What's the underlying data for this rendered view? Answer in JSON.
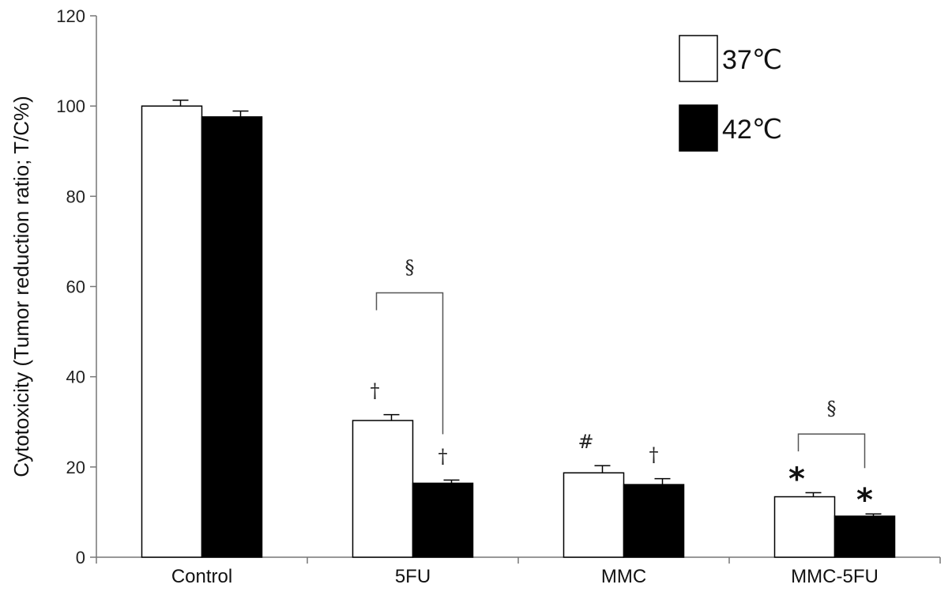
{
  "chart_data": {
    "type": "bar",
    "title": "",
    "xlabel": "",
    "ylabel": "Cytotoxicity (Tumor reduction ratio; T/C%)",
    "ylim": [
      0,
      120
    ],
    "yticks": [
      0,
      20,
      40,
      60,
      80,
      100,
      120
    ],
    "categories": [
      "Control",
      "5FU",
      "MMC",
      "MMC-5FU"
    ],
    "series": [
      {
        "name": "37℃",
        "color": "#ffffff",
        "values": [
          100,
          30.3,
          18.7,
          13.4
        ],
        "errors": [
          1.3,
          1.3,
          1.6,
          0.9
        ]
      },
      {
        "name": "42℃",
        "color": "#000000",
        "values": [
          97.6,
          16.4,
          16.1,
          9.1
        ],
        "errors": [
          1.3,
          0.7,
          1.3,
          0.5
        ]
      }
    ],
    "legend_position": "top-right",
    "grid": false,
    "annotations": [
      {
        "category": 1,
        "series": 0,
        "symbol": "†"
      },
      {
        "category": 1,
        "series": 1,
        "symbol": "†"
      },
      {
        "category": 2,
        "series": 0,
        "symbol": "#"
      },
      {
        "category": 2,
        "series": 1,
        "symbol": "†"
      },
      {
        "category": 3,
        "series": 0,
        "symbol": "*"
      },
      {
        "category": 3,
        "series": 1,
        "symbol": "*"
      }
    ],
    "brackets": [
      {
        "category": 1,
        "symbol": "§"
      },
      {
        "category": 3,
        "symbol": "§"
      }
    ]
  }
}
